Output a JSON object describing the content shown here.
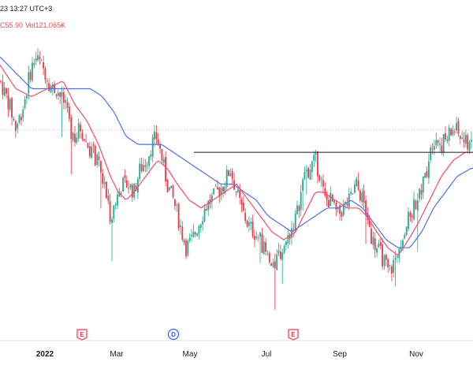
{
  "header": {
    "datetime": "23 13:27 UTC+3",
    "last_value": "C55.90",
    "volume": "Vol121.065K"
  },
  "colors": {
    "up": "#22ab94",
    "down": "#f23645",
    "ma_fast": "#ef4b6e",
    "ma_slow": "#4a72e8",
    "level": "#333333",
    "dotted": "#e8a9b4",
    "earnings": "#f23645",
    "dividend": "#2962ff"
  },
  "events": [
    {
      "type": "earnings",
      "label": "E",
      "date": "Jan 25"
    },
    {
      "type": "dividend",
      "label": "D",
      "date": "Apr 28"
    },
    {
      "type": "earnings",
      "label": "E",
      "date": "Jul 30"
    }
  ],
  "chart_data": {
    "type": "candlestick",
    "x_ticks": [
      "2022",
      "Mar",
      "May",
      "Jul",
      "Sep",
      "Nov"
    ],
    "y_range": [
      35,
      70
    ],
    "horizontal_level": 56.0,
    "reference_line": 58.8,
    "series": [
      {
        "name": "price",
        "anchors": [
          [
            0,
            65
          ],
          [
            12,
            62
          ],
          [
            20,
            59
          ],
          [
            30,
            62
          ],
          [
            38,
            66
          ],
          [
            45,
            68
          ],
          [
            52,
            67
          ],
          [
            58,
            66
          ],
          [
            65,
            64
          ],
          [
            72,
            64
          ],
          [
            82,
            62
          ],
          [
            92,
            58
          ],
          [
            102,
            59
          ],
          [
            110,
            57
          ],
          [
            118,
            56
          ],
          [
            126,
            54
          ],
          [
            134,
            51
          ],
          [
            140,
            48
          ],
          [
            147,
            50
          ],
          [
            155,
            52
          ],
          [
            162,
            52
          ],
          [
            170,
            51
          ],
          [
            178,
            54
          ],
          [
            186,
            55
          ],
          [
            192,
            57
          ],
          [
            199,
            58
          ],
          [
            206,
            55
          ],
          [
            212,
            52
          ],
          [
            220,
            50
          ],
          [
            228,
            47
          ],
          [
            236,
            44
          ],
          [
            244,
            45
          ],
          [
            252,
            47
          ],
          [
            260,
            49
          ],
          [
            268,
            50
          ],
          [
            276,
            51
          ],
          [
            284,
            52
          ],
          [
            292,
            54
          ],
          [
            300,
            51
          ],
          [
            306,
            49
          ],
          [
            314,
            47
          ],
          [
            322,
            46
          ],
          [
            330,
            45
          ],
          [
            338,
            43
          ],
          [
            346,
            41
          ],
          [
            352,
            43
          ],
          [
            360,
            44
          ],
          [
            368,
            46
          ],
          [
            376,
            48
          ],
          [
            384,
            52
          ],
          [
            392,
            54
          ],
          [
            400,
            55
          ],
          [
            406,
            53
          ],
          [
            412,
            50
          ],
          [
            420,
            50
          ],
          [
            428,
            48
          ],
          [
            436,
            49
          ],
          [
            444,
            50
          ],
          [
            452,
            52
          ],
          [
            460,
            50
          ],
          [
            466,
            48
          ],
          [
            472,
            45
          ],
          [
            478,
            44
          ],
          [
            484,
            43
          ],
          [
            492,
            41
          ],
          [
            500,
            42
          ],
          [
            508,
            45
          ],
          [
            516,
            47
          ],
          [
            524,
            49
          ],
          [
            532,
            51
          ],
          [
            540,
            53
          ],
          [
            546,
            57
          ],
          [
            552,
            58
          ],
          [
            560,
            57
          ],
          [
            568,
            58
          ],
          [
            576,
            59
          ],
          [
            584,
            58
          ],
          [
            592,
            57
          ],
          [
            598,
            58
          ]
        ]
      },
      {
        "name": "ma_fast",
        "anchors": [
          [
            0,
            67
          ],
          [
            20,
            64
          ],
          [
            40,
            63
          ],
          [
            60,
            64
          ],
          [
            80,
            65
          ],
          [
            95,
            62
          ],
          [
            110,
            60
          ],
          [
            125,
            57
          ],
          [
            140,
            53
          ],
          [
            150,
            51
          ],
          [
            160,
            50
          ],
          [
            170,
            51
          ],
          [
            185,
            53
          ],
          [
            200,
            55
          ],
          [
            212,
            54
          ],
          [
            225,
            52
          ],
          [
            240,
            50
          ],
          [
            255,
            49
          ],
          [
            270,
            50
          ],
          [
            285,
            51
          ],
          [
            300,
            52
          ],
          [
            315,
            50
          ],
          [
            330,
            48
          ],
          [
            345,
            46
          ],
          [
            360,
            45
          ],
          [
            375,
            46
          ],
          [
            390,
            49
          ],
          [
            400,
            51
          ],
          [
            410,
            51
          ],
          [
            425,
            50
          ],
          [
            440,
            49
          ],
          [
            455,
            49
          ],
          [
            465,
            48
          ],
          [
            478,
            46
          ],
          [
            492,
            44
          ],
          [
            505,
            43
          ],
          [
            518,
            45
          ],
          [
            530,
            47
          ],
          [
            545,
            50
          ],
          [
            560,
            53
          ],
          [
            575,
            55
          ],
          [
            590,
            56
          ],
          [
            598,
            56
          ]
        ]
      },
      {
        "name": "ma_slow",
        "anchors": [
          [
            0,
            68
          ],
          [
            20,
            66
          ],
          [
            40,
            64
          ],
          [
            60,
            64
          ],
          [
            80,
            64
          ],
          [
            100,
            64
          ],
          [
            115,
            64
          ],
          [
            130,
            63
          ],
          [
            145,
            61
          ],
          [
            160,
            58
          ],
          [
            175,
            57
          ],
          [
            190,
            57
          ],
          [
            205,
            57
          ],
          [
            220,
            56
          ],
          [
            235,
            55
          ],
          [
            250,
            54
          ],
          [
            265,
            53
          ],
          [
            280,
            52
          ],
          [
            295,
            52
          ],
          [
            310,
            51
          ],
          [
            325,
            50
          ],
          [
            340,
            48
          ],
          [
            355,
            47
          ],
          [
            370,
            46
          ],
          [
            385,
            47
          ],
          [
            400,
            48
          ],
          [
            415,
            49
          ],
          [
            430,
            49
          ],
          [
            445,
            50
          ],
          [
            460,
            49
          ],
          [
            475,
            47
          ],
          [
            490,
            45
          ],
          [
            505,
            44
          ],
          [
            520,
            44
          ],
          [
            535,
            46
          ],
          [
            550,
            49
          ],
          [
            565,
            51
          ],
          [
            580,
            53
          ],
          [
            598,
            54
          ]
        ]
      }
    ]
  }
}
